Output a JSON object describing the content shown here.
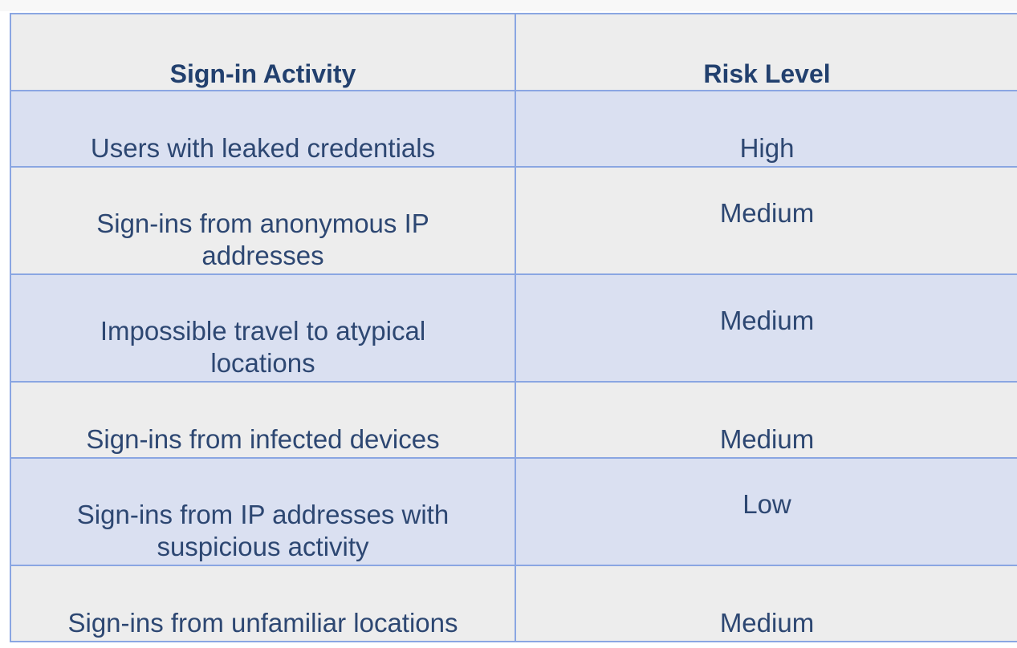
{
  "table": {
    "headers": [
      "Sign-in Activity",
      "Risk Level"
    ],
    "rows": [
      {
        "activity": "Users with leaked credentials",
        "risk": "High"
      },
      {
        "activity": "Sign-ins from anonymous IP addresses",
        "risk": "Medium"
      },
      {
        "activity": "Impossible travel to atypical locations",
        "risk": "Medium"
      },
      {
        "activity": "Sign-ins from infected devices",
        "risk": "Medium"
      },
      {
        "activity": "Sign-ins from IP addresses with suspicious activity",
        "risk": "Low"
      },
      {
        "activity": "Sign-ins from unfamiliar locations",
        "risk": "Medium"
      }
    ]
  },
  "colors": {
    "header_bg": "#ededed",
    "alt_row_bg": "#dae0f1",
    "plain_row_bg": "#ededed",
    "border": "#8aa6e2",
    "text": "#2d4772"
  }
}
